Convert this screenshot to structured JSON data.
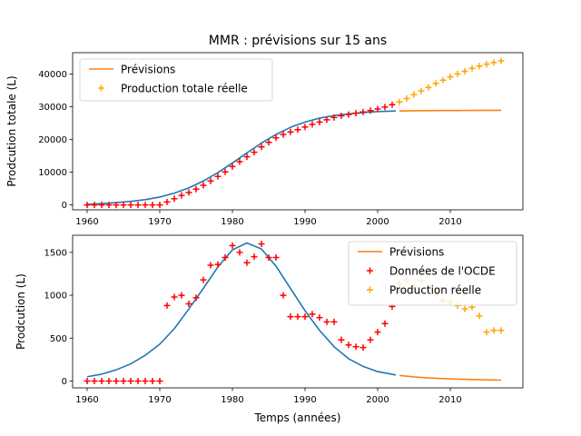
{
  "figure": {
    "title": "MMR : prévisions sur 15 ans"
  },
  "colors": {
    "model": "#1f77b4",
    "forecast": "#ff7f0e",
    "data": "#ff0000",
    "real": "#ffa500"
  },
  "chart_data": [
    {
      "type": "line",
      "ylabel": "Prodcution totale (L)",
      "xlabel": "",
      "xlim": [
        1958,
        2020
      ],
      "ylim": [
        -1500,
        46500
      ],
      "xticks": [
        1960,
        1970,
        1980,
        1990,
        2000,
        2010
      ],
      "yticks": [
        0,
        10000,
        20000,
        30000,
        40000
      ],
      "legend": {
        "placement": "top-left",
        "entries": [
          "Prévisions",
          "Production totale réelle"
        ]
      },
      "model_curve": {
        "name": "",
        "x": [
          1960,
          1962,
          1964,
          1966,
          1968,
          1970,
          1972,
          1974,
          1976,
          1978,
          1980,
          1982,
          1984,
          1986,
          1988,
          1990,
          1992,
          1994,
          1996,
          1998,
          2000,
          2002.5
        ],
        "y": [
          200,
          400,
          700,
          1100,
          1600,
          2400,
          3600,
          5200,
          7300,
          9900,
          12800,
          15900,
          18900,
          21500,
          23700,
          25300,
          26500,
          27300,
          27800,
          28200,
          28500,
          28700
        ]
      },
      "forecast": {
        "name": "Prévisions",
        "x": [
          2003,
          2005,
          2007,
          2009,
          2011,
          2013,
          2015,
          2017
        ],
        "y": [
          28700,
          28750,
          28800,
          28820,
          28840,
          28860,
          28880,
          28900
        ]
      },
      "observed": {
        "name": "",
        "x": [
          1960,
          1961,
          1962,
          1963,
          1964,
          1965,
          1966,
          1967,
          1968,
          1969,
          1970,
          1971,
          1972,
          1973,
          1974,
          1975,
          1976,
          1977,
          1978,
          1979,
          1980,
          1981,
          1982,
          1983,
          1984,
          1985,
          1986,
          1987,
          1988,
          1989,
          1990,
          1991,
          1992,
          1993,
          1994,
          1995,
          1996,
          1997,
          1998,
          1999,
          2000,
          2001,
          2002
        ],
        "y": [
          0,
          0,
          0,
          0,
          0,
          0,
          0,
          0,
          0,
          0,
          0,
          900,
          1900,
          2900,
          3800,
          4800,
          6000,
          7300,
          8700,
          10100,
          11700,
          13200,
          14700,
          16100,
          17700,
          19100,
          20500,
          21500,
          22300,
          23000,
          23800,
          24600,
          25300,
          26000,
          26700,
          27200,
          27600,
          28000,
          28400,
          28800,
          29300,
          29900,
          30600
        ]
      },
      "real": {
        "name": "Production totale réelle",
        "x": [
          2003,
          2004,
          2005,
          2006,
          2007,
          2008,
          2009,
          2010,
          2011,
          2012,
          2013,
          2014,
          2015,
          2016,
          2017
        ],
        "y": [
          31500,
          32500,
          33700,
          34800,
          35900,
          37100,
          38100,
          39100,
          40000,
          40800,
          41700,
          42400,
          43000,
          43500,
          44000
        ]
      }
    },
    {
      "type": "line",
      "ylabel": "Prodcution (L)",
      "xlabel": "Temps (années)",
      "xlim": [
        1958,
        2020
      ],
      "ylim": [
        -80,
        1700
      ],
      "xticks": [
        1960,
        1970,
        1980,
        1990,
        2000,
        2010
      ],
      "yticks": [
        0,
        500,
        1000,
        1500
      ],
      "legend": {
        "placement": "top-right",
        "entries": [
          "Prévisions",
          "Données de l'OCDE",
          "Production réelle"
        ]
      },
      "model_curve": {
        "name": "",
        "x": [
          1960,
          1962,
          1964,
          1966,
          1968,
          1970,
          1972,
          1974,
          1976,
          1978,
          1980,
          1982,
          1984,
          1986,
          1988,
          1990,
          1992,
          1994,
          1996,
          1998,
          2000,
          2002.5
        ],
        "y": [
          50,
          80,
          130,
          200,
          300,
          430,
          610,
          840,
          1080,
          1330,
          1530,
          1610,
          1540,
          1340,
          1080,
          820,
          590,
          400,
          260,
          170,
          110,
          70
        ]
      },
      "forecast": {
        "name": "Prévisions",
        "x": [
          2003,
          2005,
          2007,
          2009,
          2011,
          2013,
          2015,
          2017
        ],
        "y": [
          65,
          48,
          36,
          28,
          22,
          17,
          13,
          10
        ]
      },
      "observed": {
        "name": "Données de l'OCDE",
        "x": [
          1960,
          1961,
          1962,
          1963,
          1964,
          1965,
          1966,
          1967,
          1968,
          1969,
          1970,
          1971,
          1972,
          1973,
          1974,
          1975,
          1976,
          1977,
          1978,
          1979,
          1980,
          1981,
          1982,
          1983,
          1984,
          1985,
          1986,
          1987,
          1988,
          1989,
          1990,
          1991,
          1992,
          1993,
          1994,
          1995,
          1996,
          1997,
          1998,
          1999,
          2000,
          2001,
          2002
        ],
        "y": [
          0,
          0,
          0,
          0,
          0,
          0,
          0,
          0,
          0,
          0,
          0,
          880,
          980,
          1000,
          900,
          970,
          1180,
          1350,
          1360,
          1440,
          1580,
          1500,
          1380,
          1450,
          1600,
          1440,
          1440,
          1000,
          750,
          750,
          750,
          780,
          740,
          690,
          690,
          480,
          420,
          400,
          390,
          480,
          570,
          670,
          870
        ]
      },
      "real": {
        "name": "Production réelle",
        "x": [
          2003,
          2004,
          2005,
          2006,
          2007,
          2008,
          2009,
          2010,
          2011,
          2012,
          2013,
          2014,
          2015,
          2016,
          2017
        ],
        "y": [
          1140,
          1180,
          1100,
          1170,
          1080,
          1010,
          940,
          920,
          880,
          840,
          860,
          760,
          570,
          590,
          590
        ]
      }
    }
  ]
}
